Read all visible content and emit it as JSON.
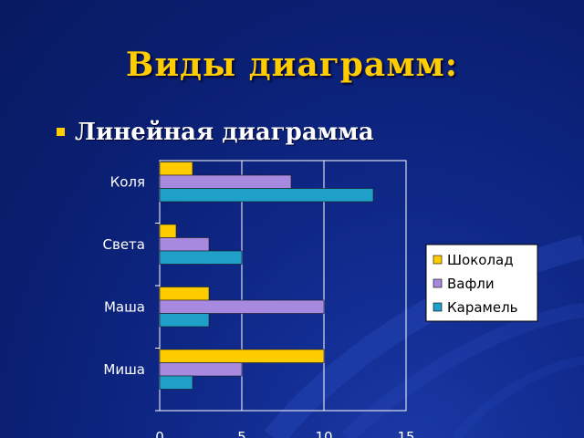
{
  "slide": {
    "title": "Виды диаграмм:",
    "bullet": "Линейная диаграмма"
  },
  "chart_data": {
    "type": "bar",
    "orientation": "horizontal",
    "categories": [
      "Коля",
      "Света",
      "Маша",
      "Миша"
    ],
    "series": [
      {
        "name": "Шоколад",
        "color": "#ffcc00",
        "values": [
          2,
          1,
          3,
          10
        ]
      },
      {
        "name": "Вафли",
        "color": "#a78ae0",
        "values": [
          8,
          3,
          10,
          5
        ]
      },
      {
        "name": "Карамель",
        "color": "#1fa0c8",
        "values": [
          13,
          5,
          3,
          2
        ]
      }
    ],
    "xlim": [
      0,
      15
    ],
    "xticks": [
      0,
      5,
      10,
      15
    ],
    "grid": true,
    "legend": "right"
  }
}
